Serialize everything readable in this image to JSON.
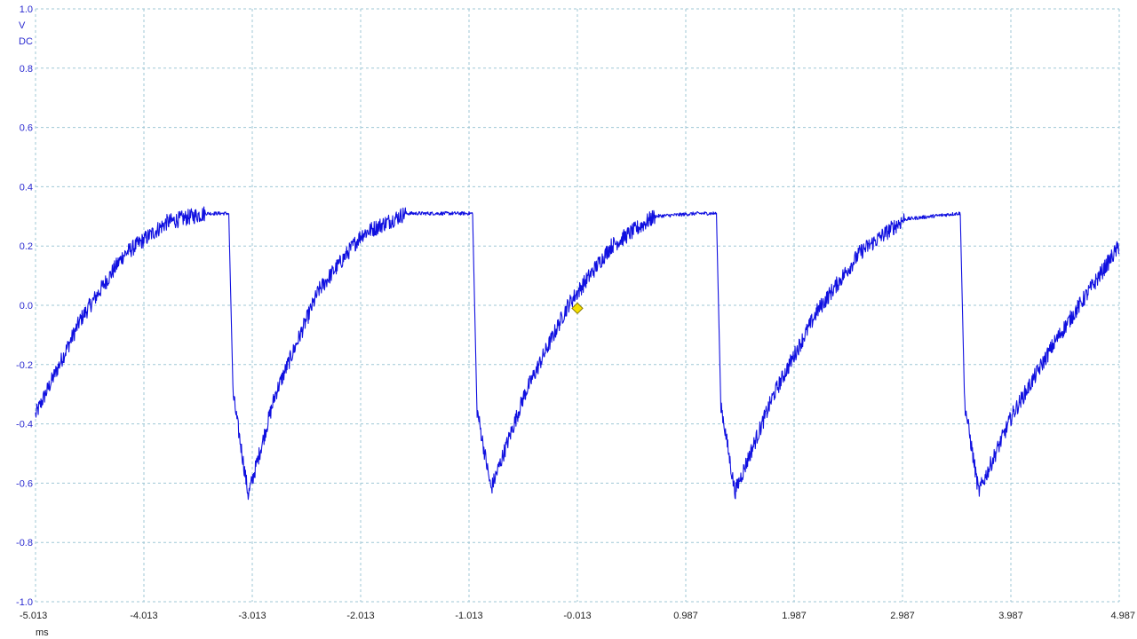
{
  "chart_data": {
    "type": "line",
    "title": "",
    "xlabel": "",
    "ylabel": "",
    "y_unit": "V",
    "y_coupling": "DC",
    "x_unit": "ms",
    "xlim": [
      -5.013,
      4.987
    ],
    "ylim": [
      -1.0,
      1.0
    ],
    "x_ticks": [
      "-5.013",
      "-4.013",
      "-3.013",
      "-2.013",
      "-1.013",
      "-0.013",
      "0.987",
      "1.987",
      "2.987",
      "3.987",
      "4.987"
    ],
    "y_ticks": [
      "1.0",
      "0.8",
      "0.6",
      "0.4",
      "0.2",
      "0.0",
      "-0.2",
      "-0.4",
      "-0.6",
      "-0.8",
      "-1.0"
    ],
    "grid": true,
    "series": [
      {
        "color": "#1010e0",
        "waveform": "sawtooth-like charge/discharge",
        "period_ms": 2.25,
        "high_level_v": 0.31,
        "low_level_v": -0.64,
        "x": [
          -5.013,
          -4.6,
          -4.2,
          -3.8,
          -3.45,
          -3.23,
          -3.19,
          -3.05,
          -2.8,
          -2.4,
          -2.0,
          -1.6,
          -1.2,
          -0.98,
          -0.94,
          -0.81,
          -0.5,
          -0.1,
          0.3,
          0.7,
          1.1,
          1.27,
          1.31,
          1.44,
          1.8,
          2.2,
          2.6,
          3.0,
          3.5,
          3.52,
          3.56,
          3.69,
          4.0,
          4.4,
          4.987
        ],
        "values": [
          -0.37,
          -0.05,
          0.17,
          0.28,
          0.31,
          0.31,
          -0.3,
          -0.64,
          -0.3,
          0.05,
          0.24,
          0.31,
          0.31,
          0.31,
          -0.35,
          -0.62,
          -0.3,
          0.0,
          0.2,
          0.3,
          0.31,
          0.31,
          -0.33,
          -0.63,
          -0.3,
          -0.02,
          0.18,
          0.29,
          0.31,
          0.31,
          -0.33,
          -0.63,
          -0.37,
          -0.12,
          0.2
        ]
      }
    ],
    "trigger_marker": {
      "x": -0.013,
      "y": -0.01,
      "color": "#f5e000"
    }
  }
}
